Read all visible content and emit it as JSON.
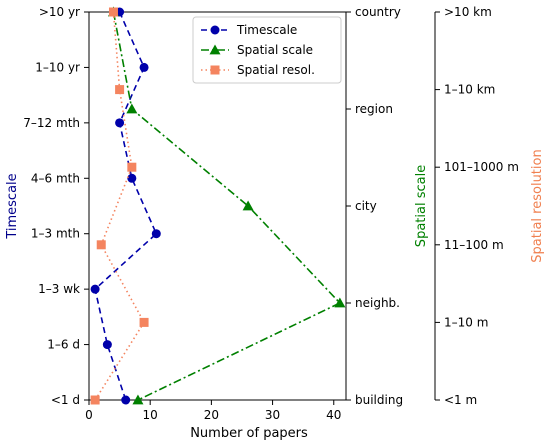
{
  "chart_data": {
    "type": "line",
    "xlabel": "Number of papers",
    "xlim": [
      0,
      42
    ],
    "xticks": [
      0,
      10,
      20,
      30,
      40
    ],
    "timescale_axis": {
      "label": "Timescale",
      "label_color": "#00008b",
      "ticks": [
        ">10 yr",
        "1–10 yr",
        "7–12 mth",
        "4–6 mth",
        "1–3 mth",
        "1–3 wk",
        "1–6 d",
        "<1 d"
      ]
    },
    "spatial_scale_axis": {
      "label": "Spatial scale",
      "label_color": "#008000",
      "ticks": [
        "country",
        "region",
        "city",
        "neighb.",
        "building"
      ]
    },
    "spatial_resolution_axis": {
      "label": "Spatial resolution",
      "label_color": "#f08050",
      "ticks": [
        ">10 km",
        "1–10 km",
        "101–1000 m",
        "11–100 m",
        "1–10 m",
        "<1 m"
      ]
    },
    "series": [
      {
        "name": "Timescale",
        "color": "#0000aa",
        "marker": "circle",
        "dash": "dashed",
        "points": [
          {
            "x": 5,
            "y": ">10 yr"
          },
          {
            "x": 9,
            "y": "1–10 yr"
          },
          {
            "x": 5,
            "y": "7–12 mth"
          },
          {
            "x": 7,
            "y": "4–6 mth"
          },
          {
            "x": 11,
            "y": "1–3 mth"
          },
          {
            "x": 1,
            "y": "1–3 wk"
          },
          {
            "x": 3,
            "y": "1–6 d"
          },
          {
            "x": 6,
            "y": "<1 d"
          }
        ]
      },
      {
        "name": "Spatial scale",
        "color": "#008000",
        "marker": "triangle",
        "dash": "dashdot",
        "points": [
          {
            "x": 4,
            "y": "country"
          },
          {
            "x": 7,
            "y": "region"
          },
          {
            "x": 26,
            "y": "city"
          },
          {
            "x": 41,
            "y": "neighb."
          },
          {
            "x": 8,
            "y": "building"
          }
        ]
      },
      {
        "name": "Spatial resol.",
        "color": "#f4845f",
        "marker": "square",
        "dash": "dotted",
        "points": [
          {
            "x": 4,
            "y": ">10 km"
          },
          {
            "x": 5,
            "y": "1–10 km"
          },
          {
            "x": 7,
            "y": "101–1000 m"
          },
          {
            "x": 2,
            "y": "11–100 m"
          },
          {
            "x": 9,
            "y": "1–10 m"
          },
          {
            "x": 1,
            "y": "<1 m"
          }
        ]
      }
    ],
    "legend": {
      "position": "top-right"
    }
  }
}
